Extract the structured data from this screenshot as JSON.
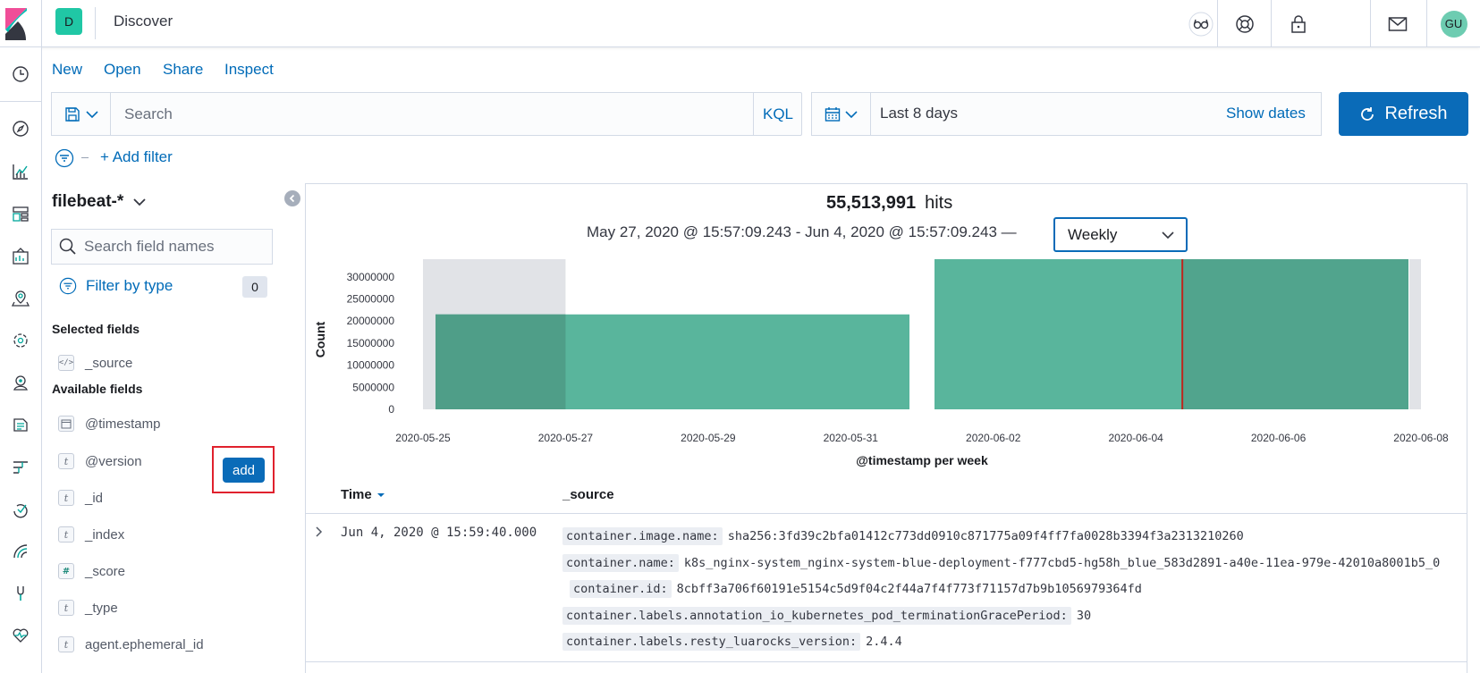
{
  "header": {
    "space_initial": "D",
    "app_title": "Discover",
    "user_initials": "GU",
    "icons": [
      "glasses-icon",
      "help-lifebuoy-icon",
      "lock-icon",
      "mail-icon"
    ]
  },
  "leftnav": {
    "icons": [
      "clock-icon",
      "compass-icon",
      "visualize-icon",
      "dashboard-icon",
      "canvas-icon",
      "maps-icon",
      "ml-icon",
      "infra-icon",
      "logs-icon",
      "apm-icon",
      "uptime-icon",
      "siem-icon",
      "devtools-icon",
      "monitoring-icon"
    ]
  },
  "menu": {
    "new": "New",
    "open": "Open",
    "share": "Share",
    "inspect": "Inspect"
  },
  "query": {
    "placeholder": "Search",
    "language": "KQL"
  },
  "date": {
    "range_label": "Last 8 days",
    "show_dates": "Show dates",
    "refresh": "Refresh"
  },
  "filters": {
    "add_filter": "+ Add filter"
  },
  "sidebar": {
    "index_pattern": "filebeat-*",
    "field_search_placeholder": "Search field names",
    "filter_by_type": "Filter by type",
    "filter_count": "0",
    "selected_fields_heading": "Selected fields",
    "selected_fields": [
      {
        "type": "source",
        "name": "_source"
      }
    ],
    "available_fields_heading": "Available fields",
    "available_fields": [
      {
        "type": "date",
        "name": "@timestamp"
      },
      {
        "type": "t",
        "name": "@version"
      },
      {
        "type": "t",
        "name": "_id"
      },
      {
        "type": "t",
        "name": "_index"
      },
      {
        "type": "#",
        "name": "_score"
      },
      {
        "type": "t",
        "name": "_type"
      },
      {
        "type": "t",
        "name": "agent.ephemeral_id"
      }
    ],
    "add_button": "add"
  },
  "results": {
    "hits_count": "55,513,991",
    "hits_label": "hits",
    "time_range": "May 27, 2020 @ 15:57:09.243 - Jun 4, 2020 @ 15:57:09.243 —",
    "interval": "Weekly"
  },
  "chart_data": {
    "type": "bar",
    "title": "",
    "xlabel": "@timestamp per week",
    "ylabel": "Count",
    "ylim": [
      0,
      34000000
    ],
    "y_ticks": [
      0,
      5000000,
      10000000,
      15000000,
      20000000,
      25000000,
      30000000
    ],
    "x_ticks": [
      "2020-05-25",
      "2020-05-27",
      "2020-05-29",
      "2020-05-31",
      "2020-06-02",
      "2020-06-04",
      "2020-06-06",
      "2020-06-08"
    ],
    "x_domain": [
      "2020-05-25",
      "2020-06-08"
    ],
    "bars": [
      {
        "start": "2020-05-25",
        "end": "2020-06-01",
        "value": 21500000
      },
      {
        "start": "2020-06-01",
        "end": "2020-06-08",
        "value": 34000000
      }
    ],
    "selection_shaded": [
      {
        "start": "2020-05-25",
        "end": "2020-05-27"
      },
      {
        "start": "2020-06-08",
        "end": "2020-06-08"
      }
    ],
    "current_time_marker": "2020-06-04",
    "bar_color": "#54b399",
    "marker_color": "#bd271e",
    "grid": false
  },
  "table": {
    "col_time": "Time",
    "col_source": "_source",
    "rows": [
      {
        "time": "Jun 4, 2020 @ 15:59:40.000",
        "fields": [
          {
            "key": "container.image.name:",
            "value": "sha256:3fd39c2bfa01412c773dd0910c871775a09f4ff7fa0028b3394f3a2313210260"
          },
          {
            "key": "container.name:",
            "value": "k8s_nginx-system_nginx-system-blue-deployment-f777cbd5-hg58h_blue_583d2891-a40e-11ea-979e-42010a8001b5_0"
          },
          {
            "key": "container.id:",
            "value": "8cbff3a706f60191e5154c5d9f04c2f44a7f4f773f71157d7b9b1056979364fd"
          },
          {
            "key": "container.labels.annotation_io_kubernetes_pod_terminationGracePeriod:",
            "value": "30"
          },
          {
            "key": "container.labels.resty_luarocks_version:",
            "value": "2.4.4"
          }
        ]
      }
    ]
  }
}
